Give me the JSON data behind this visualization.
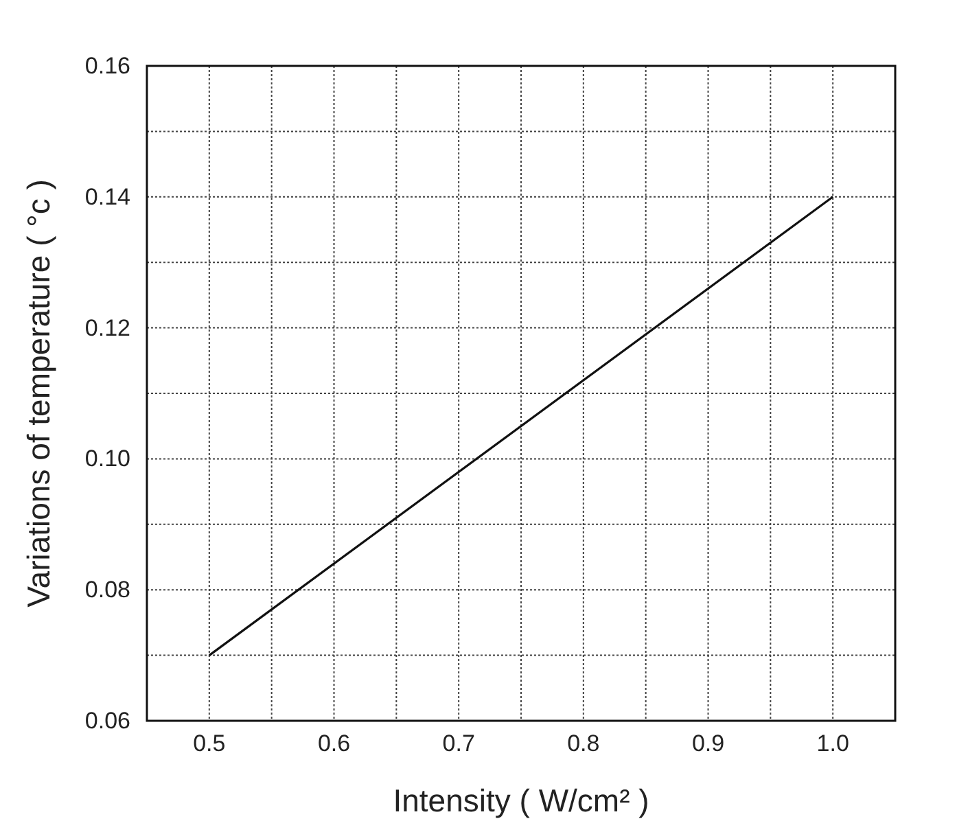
{
  "chart_data": {
    "type": "line",
    "xlabel": "Intensity ( W/cm² )",
    "ylabel": "Variations of temperature ( °c )",
    "x": [
      0.5,
      1.0
    ],
    "series": [
      {
        "color": "#111111",
        "values": [
          0.07,
          0.14
        ]
      }
    ],
    "xlim": [
      0.45,
      1.05
    ],
    "xticks": [
      {
        "value": 0.45,
        "label": null
      },
      0.5,
      {
        "value": 0.55,
        "label": null
      },
      0.6,
      {
        "value": 0.65,
        "label": null
      },
      0.7,
      {
        "value": 0.75,
        "label": null
      },
      0.8,
      {
        "value": 0.85,
        "label": null
      },
      0.9,
      {
        "value": 0.95,
        "label": null
      },
      {
        "value": 1.0,
        "label": "1.0"
      },
      {
        "value": 1.05,
        "label": null
      }
    ],
    "ylim": [
      0.06,
      0.16
    ],
    "yticks": [
      {
        "value": 0.06,
        "label": "0.06"
      },
      {
        "value": 0.07,
        "label": null
      },
      {
        "value": 0.08,
        "label": "0.08"
      },
      {
        "value": 0.09,
        "label": null
      },
      {
        "value": 0.1,
        "label": "0.10"
      },
      {
        "value": 0.11,
        "label": null
      },
      {
        "value": 0.12,
        "label": "0.12"
      },
      {
        "value": 0.13,
        "label": null
      },
      {
        "value": 0.14,
        "label": "0.14"
      },
      {
        "value": 0.15,
        "label": null
      },
      {
        "value": 0.16,
        "label": "0.16"
      }
    ],
    "grid": true,
    "marker": "none",
    "line_style": "solid"
  }
}
